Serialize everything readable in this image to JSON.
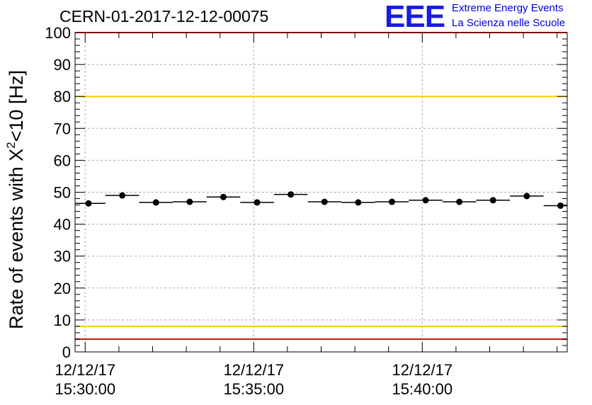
{
  "title": "CERN-01-2017-12-12-00075",
  "logo": {
    "mark": "EEE",
    "line1": "Extreme Energy Events",
    "line2": "La Scienza nelle Scuole",
    "color": "#1a1ae6"
  },
  "chart_data": {
    "type": "scatter",
    "ylabel_main": "Rate of events with X",
    "ylabel_sup": "2",
    "ylabel_rest": "<10 [Hz]",
    "ylim": [
      0,
      100
    ],
    "yticks": [
      0,
      10,
      20,
      30,
      40,
      50,
      60,
      70,
      80,
      90,
      100
    ],
    "xlim_minutes": [
      -0.3,
      14.3
    ],
    "xticks": [
      {
        "minute": 0,
        "date": "12/12/17",
        "time": "15:30:00"
      },
      {
        "minute": 5,
        "date": "12/12/17",
        "time": "15:35:00"
      },
      {
        "minute": 10,
        "date": "12/12/17",
        "time": "15:40:00"
      }
    ],
    "grid": true,
    "reference_lines": [
      {
        "y": 100,
        "color": "#ff0000"
      },
      {
        "y": 80,
        "color": "#ffcc00"
      },
      {
        "y": 8,
        "color": "#ffcc00"
      },
      {
        "y": 4,
        "color": "#ff0000"
      }
    ],
    "bin_width_minutes": 1,
    "points": [
      {
        "x": 0.1,
        "y": 46.5
      },
      {
        "x": 1.1,
        "y": 49.0
      },
      {
        "x": 2.1,
        "y": 46.8
      },
      {
        "x": 3.1,
        "y": 47.0
      },
      {
        "x": 4.1,
        "y": 48.5
      },
      {
        "x": 5.1,
        "y": 46.8
      },
      {
        "x": 6.1,
        "y": 49.3
      },
      {
        "x": 7.1,
        "y": 47.0
      },
      {
        "x": 8.1,
        "y": 46.8
      },
      {
        "x": 9.1,
        "y": 47.0
      },
      {
        "x": 10.1,
        "y": 47.5
      },
      {
        "x": 11.1,
        "y": 47.0
      },
      {
        "x": 12.1,
        "y": 47.5
      },
      {
        "x": 13.1,
        "y": 48.8
      },
      {
        "x": 14.1,
        "y": 45.8
      }
    ]
  }
}
